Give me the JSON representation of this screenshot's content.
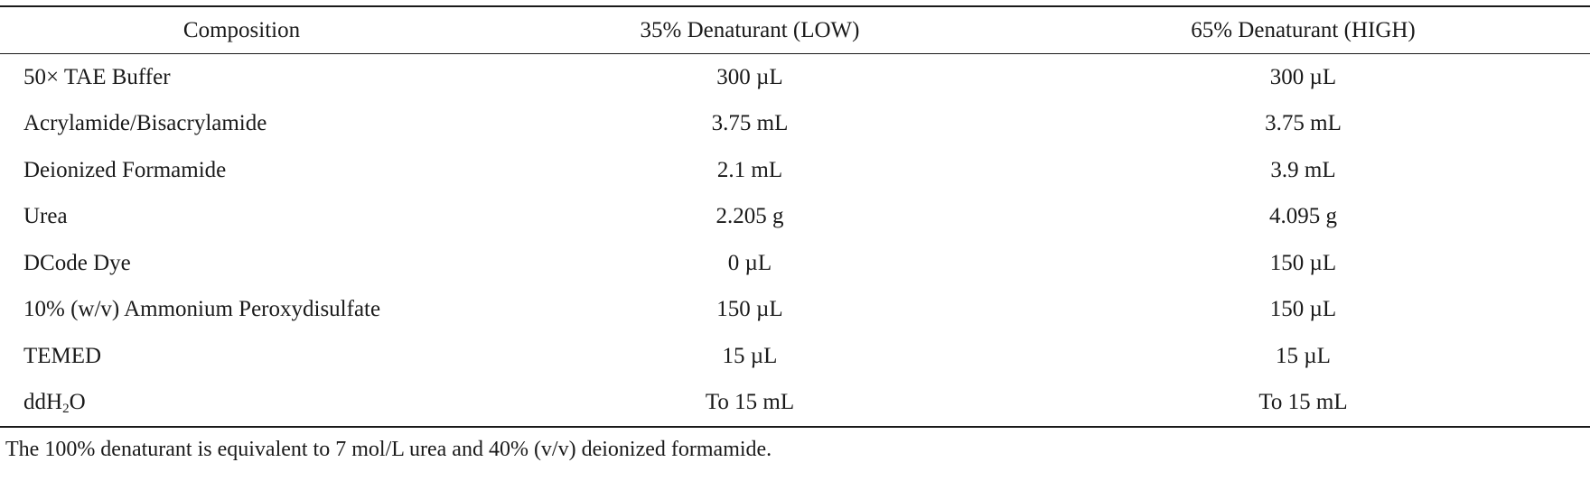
{
  "table": {
    "headers": [
      "Composition",
      "35% Denaturant (LOW)",
      "65% Denaturant (HIGH)"
    ],
    "rows": [
      {
        "name": "50× TAE Buffer",
        "low": "300 µL",
        "high": "300 µL"
      },
      {
        "name": "Acrylamide/Bisacrylamide",
        "low": "3.75 mL",
        "high": "3.75 mL"
      },
      {
        "name": "Deionized Formamide",
        "low": "2.1 mL",
        "high": "3.9 mL"
      },
      {
        "name": "Urea",
        "low": "2.205 g",
        "high": "4.095 g"
      },
      {
        "name": "DCode Dye",
        "low": "0 µL",
        "high": "150 µL"
      },
      {
        "name": "10% (w/v) Ammonium Peroxydisulfate",
        "low": "150 µL",
        "high": "150 µL"
      },
      {
        "name": "TEMED",
        "low": "15 µL",
        "high": "15 µL"
      },
      {
        "name_prefix": "ddH",
        "name_sub": "2",
        "name_suffix": "O",
        "low": "To 15 mL",
        "high": "To 15 mL"
      }
    ]
  },
  "footnote": "The 100% denaturant is equivalent to 7 mol/L urea and 40% (v/v) deionized formamide."
}
